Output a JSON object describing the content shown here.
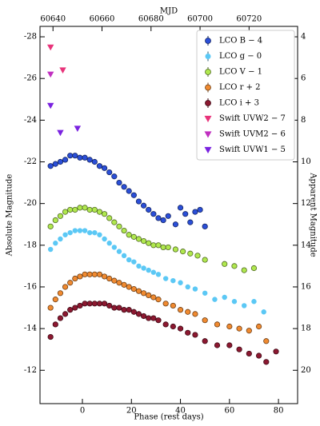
{
  "chart_data": {
    "type": "scatter",
    "x_label": "Phase (rest days)",
    "y_label": "Absolute Magnitude",
    "y2_label": "Apparent Magnitude",
    "x2_label": "MJD",
    "xlim": [
      -17.3,
      87.8
    ],
    "xticks": [
      0,
      20,
      40,
      60,
      80
    ],
    "x2lim": [
      60634.7,
      60739.8
    ],
    "x2ticks": [
      60640,
      60660,
      60680,
      60700,
      60720
    ],
    "ylim": [
      -10.4,
      -28.5
    ],
    "yticks": [
      -28,
      -26,
      -24,
      -22,
      -20,
      -18,
      -16,
      -14,
      -12
    ],
    "invert_y": true,
    "y2lim": [
      21.6,
      3.5
    ],
    "y2ticks": [
      4,
      6,
      8,
      10,
      12,
      14,
      16,
      18,
      20
    ],
    "legend": "upper right",
    "series": [
      {
        "name": "LCO B − 4",
        "color": "#2b4fd8",
        "marker": "o",
        "x": [
          -13,
          -11,
          -9,
          -7,
          -5,
          -3,
          -1,
          1,
          3,
          5,
          7,
          9,
          11,
          13,
          15,
          17,
          19,
          21,
          23,
          25,
          27,
          29,
          31,
          33,
          35,
          38,
          40,
          42,
          44,
          46,
          48,
          50
        ],
        "values": [
          -21.8,
          -21.9,
          -22.0,
          -22.1,
          -22.3,
          -22.3,
          -22.2,
          -22.2,
          -22.1,
          -22.0,
          -21.8,
          -21.7,
          -21.5,
          -21.3,
          -21.0,
          -20.8,
          -20.6,
          -20.4,
          -20.1,
          -19.9,
          -19.7,
          -19.5,
          -19.3,
          -19.2,
          -19.4,
          -19.0,
          -19.8,
          -19.5,
          -19.1,
          -19.6,
          -19.7,
          -18.9
        ]
      },
      {
        "name": "LCO g − 0",
        "color": "#5bc8f5",
        "marker": "o",
        "x": [
          -13,
          -11,
          -9,
          -7,
          -5,
          -3,
          -1,
          1,
          3,
          5,
          7,
          9,
          11,
          13,
          15,
          17,
          19,
          21,
          23,
          25,
          27,
          29,
          31,
          34,
          37,
          40,
          43,
          46,
          50,
          54,
          58,
          62,
          66,
          70,
          74
        ],
        "values": [
          -17.8,
          -18.1,
          -18.3,
          -18.5,
          -18.6,
          -18.7,
          -18.7,
          -18.7,
          -18.6,
          -18.6,
          -18.5,
          -18.3,
          -18.1,
          -17.9,
          -17.7,
          -17.5,
          -17.3,
          -17.2,
          -17.0,
          -16.9,
          -16.8,
          -16.7,
          -16.6,
          -16.4,
          -16.3,
          -16.2,
          -16.0,
          -15.9,
          -15.7,
          -15.4,
          -15.5,
          -15.3,
          -15.1,
          -15.3,
          -14.8
        ]
      },
      {
        "name": "LCO V − 1",
        "color": "#b0e84e",
        "marker": "o",
        "x": [
          -13,
          -11,
          -9,
          -7,
          -5,
          -3,
          -1,
          1,
          3,
          5,
          7,
          9,
          11,
          13,
          15,
          17,
          19,
          21,
          23,
          25,
          27,
          29,
          31,
          33,
          35,
          38,
          41,
          44,
          47,
          50,
          58,
          62,
          66,
          70
        ],
        "values": [
          -18.9,
          -19.2,
          -19.4,
          -19.6,
          -19.7,
          -19.7,
          -19.8,
          -19.8,
          -19.7,
          -19.7,
          -19.6,
          -19.5,
          -19.3,
          -19.1,
          -18.9,
          -18.7,
          -18.5,
          -18.4,
          -18.3,
          -18.2,
          -18.1,
          -18.0,
          -18.0,
          -17.9,
          -17.9,
          -17.8,
          -17.7,
          -17.6,
          -17.5,
          -17.3,
          -17.1,
          -17.0,
          -16.8,
          -16.9
        ]
      },
      {
        "name": "LCO r + 2",
        "color": "#f08a30",
        "marker": "o",
        "x": [
          -13,
          -11,
          -9,
          -7,
          -5,
          -3,
          -1,
          1,
          3,
          5,
          7,
          9,
          11,
          13,
          15,
          17,
          19,
          21,
          23,
          25,
          27,
          29,
          31,
          34,
          37,
          40,
          43,
          46,
          50,
          55,
          60,
          64,
          68,
          72,
          75
        ],
        "values": [
          -15.0,
          -15.4,
          -15.7,
          -16.0,
          -16.2,
          -16.4,
          -16.5,
          -16.6,
          -16.6,
          -16.6,
          -16.6,
          -16.5,
          -16.4,
          -16.3,
          -16.2,
          -16.1,
          -16.0,
          -15.9,
          -15.8,
          -15.7,
          -15.6,
          -15.5,
          -15.4,
          -15.2,
          -15.1,
          -14.9,
          -14.8,
          -14.7,
          -14.4,
          -14.2,
          -14.1,
          -14.0,
          -13.9,
          -14.1,
          -13.4
        ]
      },
      {
        "name": "LCO i + 3",
        "color": "#8c1830",
        "marker": "o",
        "x": [
          -13,
          -11,
          -9,
          -7,
          -5,
          -3,
          -1,
          1,
          3,
          5,
          7,
          9,
          11,
          13,
          15,
          17,
          19,
          21,
          23,
          25,
          27,
          29,
          31,
          34,
          37,
          40,
          43,
          46,
          50,
          55,
          60,
          64,
          68,
          72,
          75,
          79
        ],
        "values": [
          -13.6,
          -14.2,
          -14.5,
          -14.7,
          -14.9,
          -15.0,
          -15.1,
          -15.2,
          -15.2,
          -15.2,
          -15.2,
          -15.2,
          -15.1,
          -15.0,
          -15.0,
          -14.9,
          -14.9,
          -14.8,
          -14.7,
          -14.6,
          -14.5,
          -14.5,
          -14.4,
          -14.2,
          -14.1,
          -14.0,
          -13.8,
          -13.7,
          -13.4,
          -13.2,
          -13.2,
          -13.0,
          -12.8,
          -12.7,
          -12.4,
          -12.9
        ]
      },
      {
        "name": "Swift UVW2 − 7",
        "color": "#e8337a",
        "marker": "v",
        "x": [
          -13,
          -8
        ],
        "values": [
          -27.5,
          -26.4
        ]
      },
      {
        "name": "Swift UVM2 − 6",
        "color": "#c030c0",
        "marker": "v",
        "x": [
          -13
        ],
        "values": [
          -26.2
        ]
      },
      {
        "name": "Swift UVW1 − 5",
        "color": "#7a22e0",
        "marker": "v",
        "x": [
          -13,
          -9,
          -2
        ],
        "values": [
          -24.7,
          -23.4,
          -23.6
        ]
      }
    ]
  }
}
